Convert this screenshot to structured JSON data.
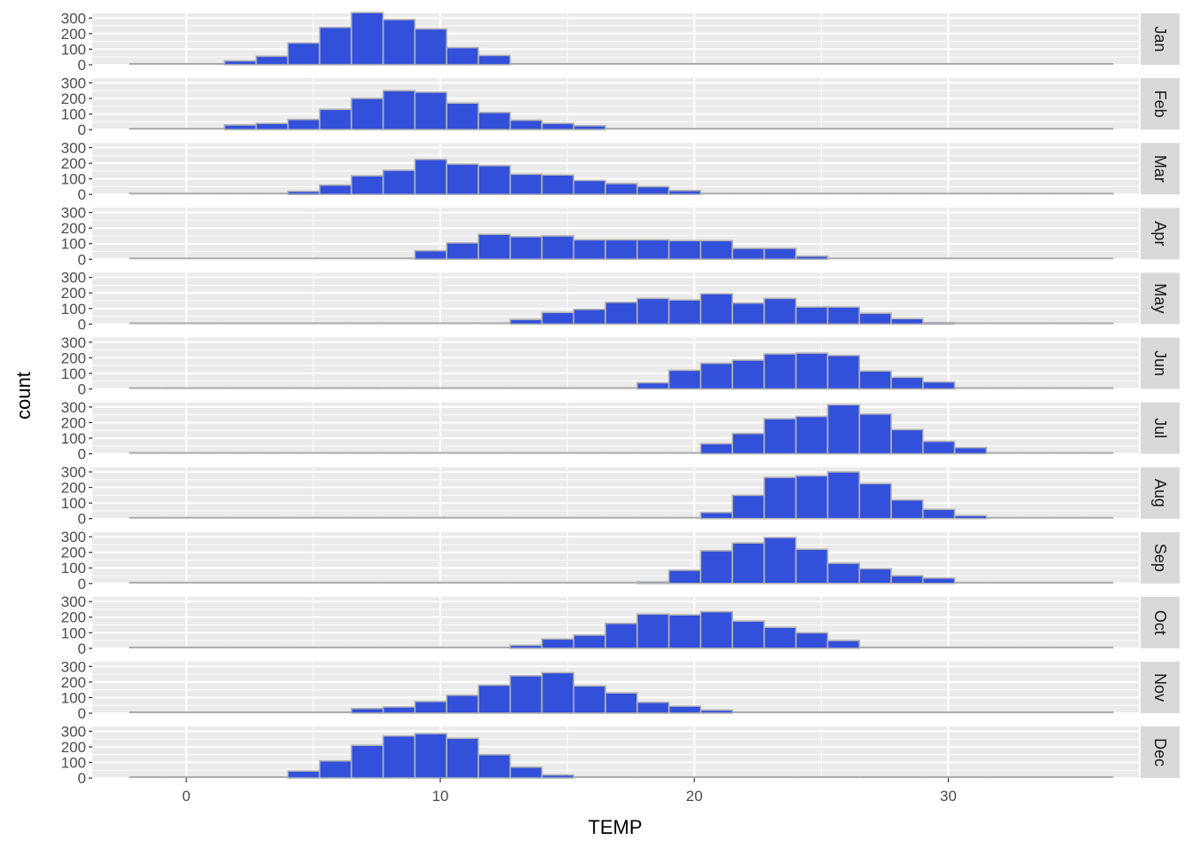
{
  "chart_data": {
    "type": "bar",
    "subtype": "faceted-histogram",
    "xlabel": "TEMP",
    "ylabel": "count",
    "xlim": [
      -3.7,
      37.5
    ],
    "ylim": [
      0,
      330
    ],
    "x_ticks": [
      0,
      10,
      20,
      30
    ],
    "y_ticks": [
      0,
      100,
      200,
      300
    ],
    "grid": true,
    "facet_strip_position": "right",
    "colors": {
      "panel_background": "#ebebeb",
      "grid_line": "#ffffff",
      "highlight_fill": "#3350db",
      "bar_outline": "#b3b3b3",
      "background_bar": "#aaaaaa",
      "strip_background": "#d9d9d9",
      "strip_text": "#1a1a1a",
      "axis_text": "#4d4d4d"
    },
    "bin_starts": [
      -2.25,
      -1.0,
      0.25,
      1.5,
      2.75,
      4.0,
      5.25,
      6.5,
      7.75,
      9.0,
      10.25,
      11.5,
      12.75,
      14.0,
      15.25,
      16.5,
      17.75,
      19.0,
      20.25,
      21.5,
      22.75,
      24.0,
      25.25,
      26.5,
      27.75,
      29.0,
      30.25,
      31.5,
      32.75,
      34.0,
      35.25
    ],
    "bin_width": 1.25,
    "panels": [
      {
        "label": "Jan",
        "values": [
          0,
          0,
          0,
          25,
          55,
          140,
          240,
          335,
          290,
          230,
          110,
          60,
          0,
          0,
          0,
          0,
          0,
          0,
          0,
          0,
          0,
          0,
          0,
          0,
          0,
          0,
          0,
          0,
          0,
          0,
          0
        ],
        "highlight_range": [
          1.5,
          12.75
        ]
      },
      {
        "label": "Feb",
        "values": [
          0,
          0,
          0,
          30,
          40,
          65,
          130,
          200,
          250,
          240,
          170,
          110,
          60,
          40,
          25,
          0,
          0,
          0,
          0,
          0,
          0,
          0,
          0,
          0,
          0,
          0,
          0,
          0,
          0,
          0,
          0
        ],
        "highlight_range": [
          1.5,
          17.75
        ]
      },
      {
        "label": "Mar",
        "values": [
          0,
          0,
          0,
          0,
          0,
          20,
          60,
          120,
          155,
          225,
          195,
          185,
          130,
          125,
          90,
          70,
          50,
          25,
          0,
          0,
          0,
          0,
          0,
          0,
          0,
          0,
          0,
          0,
          0,
          0,
          0
        ],
        "highlight_range": [
          4.0,
          21.5
        ]
      },
      {
        "label": "Apr",
        "values": [
          0,
          0,
          0,
          0,
          0,
          0,
          0,
          0,
          0,
          55,
          105,
          160,
          145,
          150,
          125,
          125,
          125,
          120,
          120,
          70,
          70,
          20,
          0,
          0,
          0,
          0,
          0,
          0,
          0,
          0,
          0
        ],
        "highlight_range": [
          9.0,
          26.5
        ]
      },
      {
        "label": "May",
        "values": [
          0,
          0,
          0,
          0,
          0,
          0,
          0,
          0,
          0,
          0,
          0,
          0,
          30,
          75,
          95,
          140,
          165,
          155,
          195,
          135,
          165,
          110,
          110,
          70,
          35,
          10,
          0,
          0,
          0,
          0,
          0
        ],
        "highlight_range": [
          12.75,
          31.5
        ]
      },
      {
        "label": "Jun",
        "values": [
          0,
          0,
          0,
          0,
          0,
          0,
          0,
          0,
          0,
          0,
          0,
          0,
          0,
          0,
          0,
          0,
          40,
          120,
          165,
          185,
          225,
          230,
          215,
          115,
          75,
          45,
          0,
          0,
          0,
          0,
          0
        ],
        "highlight_range": [
          17.75,
          31.5
        ]
      },
      {
        "label": "Jul",
        "values": [
          0,
          0,
          0,
          0,
          0,
          0,
          0,
          0,
          0,
          0,
          0,
          0,
          0,
          0,
          0,
          0,
          0,
          0,
          65,
          130,
          225,
          240,
          315,
          255,
          155,
          80,
          40,
          0,
          0,
          0,
          0
        ],
        "highlight_range": [
          20.25,
          32.75
        ]
      },
      {
        "label": "Aug",
        "values": [
          0,
          0,
          0,
          0,
          0,
          0,
          0,
          0,
          0,
          0,
          0,
          0,
          0,
          0,
          0,
          0,
          0,
          0,
          40,
          150,
          265,
          275,
          300,
          225,
          120,
          60,
          20,
          0,
          0,
          0,
          0
        ],
        "highlight_range": [
          20.25,
          32.75
        ]
      },
      {
        "label": "Sep",
        "values": [
          0,
          0,
          0,
          0,
          0,
          0,
          0,
          0,
          0,
          0,
          0,
          0,
          0,
          0,
          0,
          0,
          10,
          85,
          210,
          260,
          295,
          220,
          130,
          95,
          50,
          35,
          0,
          0,
          0,
          0,
          0
        ],
        "highlight_range": [
          17.75,
          31.5
        ]
      },
      {
        "label": "Oct",
        "values": [
          0,
          0,
          0,
          0,
          0,
          0,
          0,
          0,
          0,
          0,
          0,
          0,
          20,
          60,
          85,
          160,
          220,
          215,
          235,
          175,
          135,
          100,
          50,
          0,
          0,
          0,
          0,
          0,
          0,
          0,
          0
        ],
        "highlight_range": [
          12.75,
          27.75
        ]
      },
      {
        "label": "Nov",
        "values": [
          0,
          0,
          0,
          0,
          0,
          0,
          0,
          30,
          40,
          75,
          115,
          180,
          240,
          260,
          175,
          130,
          70,
          45,
          20,
          0,
          0,
          0,
          0,
          0,
          0,
          0,
          0,
          0,
          0,
          0,
          0
        ],
        "highlight_range": [
          6.5,
          22.75
        ]
      },
      {
        "label": "Dec",
        "values": [
          0,
          0,
          0,
          0,
          0,
          45,
          110,
          210,
          270,
          285,
          255,
          150,
          70,
          20,
          0,
          0,
          0,
          0,
          0,
          0,
          0,
          0,
          0,
          0,
          0,
          0,
          0,
          0,
          0,
          0,
          0
        ],
        "highlight_range": [
          4.0,
          16.5
        ]
      }
    ]
  }
}
